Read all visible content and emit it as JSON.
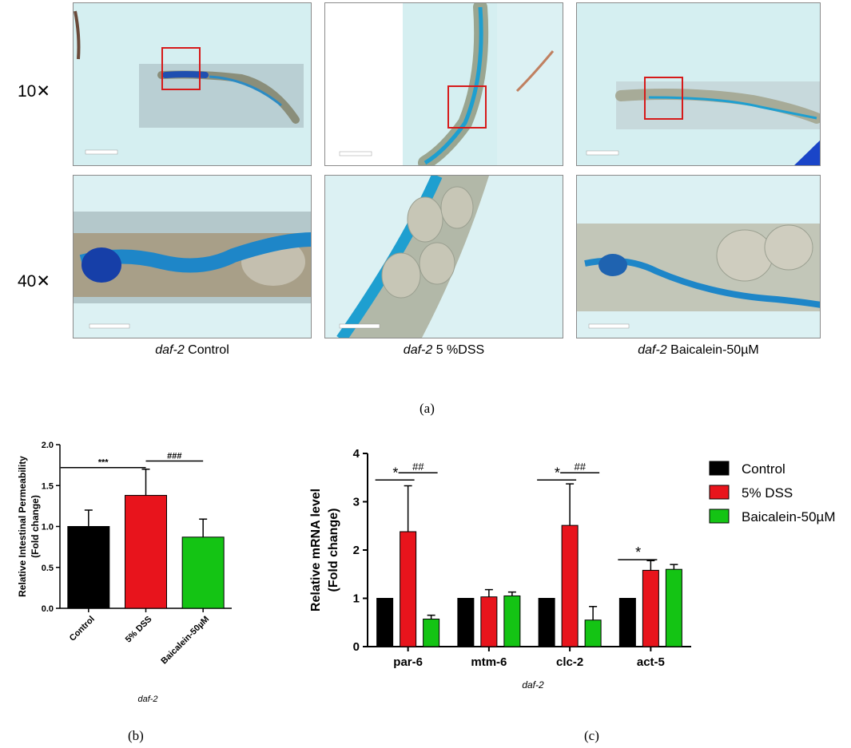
{
  "figure_a": {
    "row_labels": [
      "10✕",
      "40✕"
    ],
    "columns": [
      {
        "italic": "daf-2",
        "rest": " Control"
      },
      {
        "italic": "daf-2",
        "rest": " 5 %DSS"
      },
      {
        "italic": "daf-2",
        "rest": " Baicalein-50µM"
      }
    ],
    "letter": "(a)"
  },
  "colors": {
    "control": "#000000",
    "dss": "#e8141c",
    "baicalein": "#14c414",
    "stain": "#1e9fd0",
    "bg": "#d3eef0"
  },
  "chart_data": [
    {
      "type": "bar",
      "id": "b",
      "categories": [
        "Control",
        "5% DSS",
        "Baicalein-50µM"
      ],
      "values": [
        1.0,
        1.38,
        0.87
      ],
      "errors": [
        0.2,
        0.32,
        0.22
      ],
      "ylabel": "Relative Intestinal Permeability",
      "ylabel2": "(Fold change)",
      "xlabel": "daf-2",
      "ylim": [
        0,
        2.0
      ],
      "yticks": [
        "0.0",
        "0.5",
        "1.0",
        "1.5",
        "2.0"
      ],
      "annotations": [
        {
          "text": "***",
          "from": 0,
          "to": 1,
          "y": 1.72
        },
        {
          "text": "###",
          "from": 1,
          "to": 2,
          "y": 1.8
        }
      ],
      "letter": "(b)"
    },
    {
      "type": "bar",
      "id": "c",
      "categories": [
        "par-6",
        "mtm-6",
        "clc-2",
        "act-5"
      ],
      "series": [
        {
          "name": "Control",
          "values": [
            1.0,
            1.0,
            1.0,
            1.0
          ],
          "errors": [
            0.02,
            0.02,
            0.02,
            0.0
          ]
        },
        {
          "name": "5% DSS",
          "values": [
            2.38,
            1.03,
            2.51,
            1.58
          ],
          "errors": [
            0.95,
            0.15,
            0.86,
            0.2
          ]
        },
        {
          "name": "Baicalein-50µM",
          "values": [
            0.57,
            1.05,
            0.55,
            1.6
          ],
          "errors": [
            0.08,
            0.08,
            0.28,
            0.1
          ]
        }
      ],
      "ylabel": "Relative mRNA level",
      "ylabel2": "(Fold change)",
      "xlabel": "daf-2",
      "ylim": [
        0,
        4
      ],
      "yticks": [
        "0",
        "1",
        "2",
        "3",
        "4"
      ],
      "annotations": [
        {
          "text": "*",
          "cat": 0,
          "from": 0,
          "to": 1,
          "y": 3.45
        },
        {
          "text": "##",
          "cat": 0,
          "from": 1,
          "to": 2,
          "y": 3.6
        },
        {
          "text": "*",
          "cat": 2,
          "from": 0,
          "to": 1,
          "y": 3.45
        },
        {
          "text": "##",
          "cat": 2,
          "from": 1,
          "to": 2,
          "y": 3.6
        },
        {
          "text": "*",
          "cat": 3,
          "from": 0,
          "to": 1,
          "y": 1.8
        }
      ],
      "letter": "(c)"
    }
  ]
}
